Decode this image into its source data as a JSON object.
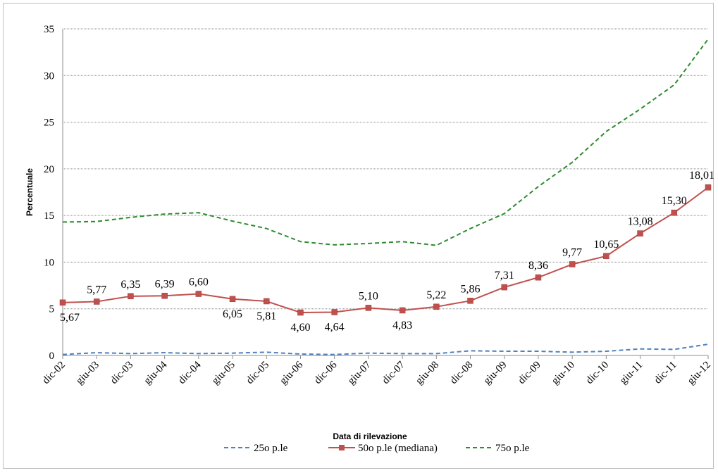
{
  "chart_data": {
    "type": "line",
    "xlabel": "Data di rilevazione",
    "ylabel": "Percentuale",
    "ylim": [
      0,
      35
    ],
    "yticks": [
      "0",
      "5",
      "10",
      "15",
      "20",
      "25",
      "30",
      "35"
    ],
    "grid": true,
    "legend_position": "bottom",
    "categories": [
      "dic-02",
      "giu-03",
      "dic-03",
      "giu-04",
      "dic-04",
      "giu-05",
      "dic-05",
      "giu-06",
      "dic-06",
      "giu-07",
      "dic-07",
      "giu-08",
      "dic-08",
      "giu-09",
      "dic-09",
      "giu-10",
      "dic-10",
      "giu-11",
      "dic-11",
      "giu-12"
    ],
    "series": [
      {
        "name": "25o p.le",
        "color": "#4f81bd",
        "style": "dashed",
        "values": [
          0.1,
          0.3,
          0.2,
          0.3,
          0.2,
          0.25,
          0.35,
          0.15,
          0.1,
          0.25,
          0.2,
          0.2,
          0.5,
          0.45,
          0.45,
          0.35,
          0.45,
          0.7,
          0.65,
          1.2
        ]
      },
      {
        "name": "50o p.le (mediana)",
        "color": "#c0504d",
        "style": "solid",
        "markers": "square",
        "values": [
          5.67,
          5.77,
          6.35,
          6.39,
          6.6,
          6.05,
          5.81,
          4.6,
          4.64,
          5.1,
          4.83,
          5.22,
          5.86,
          7.31,
          8.36,
          9.77,
          10.65,
          13.08,
          15.3,
          18.01
        ],
        "data_labels": [
          "5,67",
          "5,77",
          "6,35",
          "6,39",
          "6,60",
          "6,05",
          "5,81",
          "4,60",
          "4,64",
          "5,10",
          "4,83",
          "5,22",
          "5,86",
          "7,31",
          "8,36",
          "9,77",
          "10,65",
          "13,08",
          "15,30",
          "18,01"
        ],
        "label_positions": [
          "below",
          "above",
          "above",
          "above",
          "above",
          "below",
          "below",
          "below",
          "below",
          "above",
          "below",
          "above",
          "above",
          "above",
          "above",
          "above",
          "above",
          "above",
          "above",
          "above"
        ]
      },
      {
        "name": "75o p.le",
        "color": "#2e8b2e",
        "style": "dashed",
        "values": [
          14.3,
          14.35,
          14.8,
          15.15,
          15.3,
          14.4,
          13.6,
          12.2,
          11.85,
          12.0,
          12.2,
          11.8,
          13.6,
          15.2,
          18.1,
          20.7,
          24.0,
          26.4,
          29.0,
          33.9
        ]
      }
    ]
  }
}
